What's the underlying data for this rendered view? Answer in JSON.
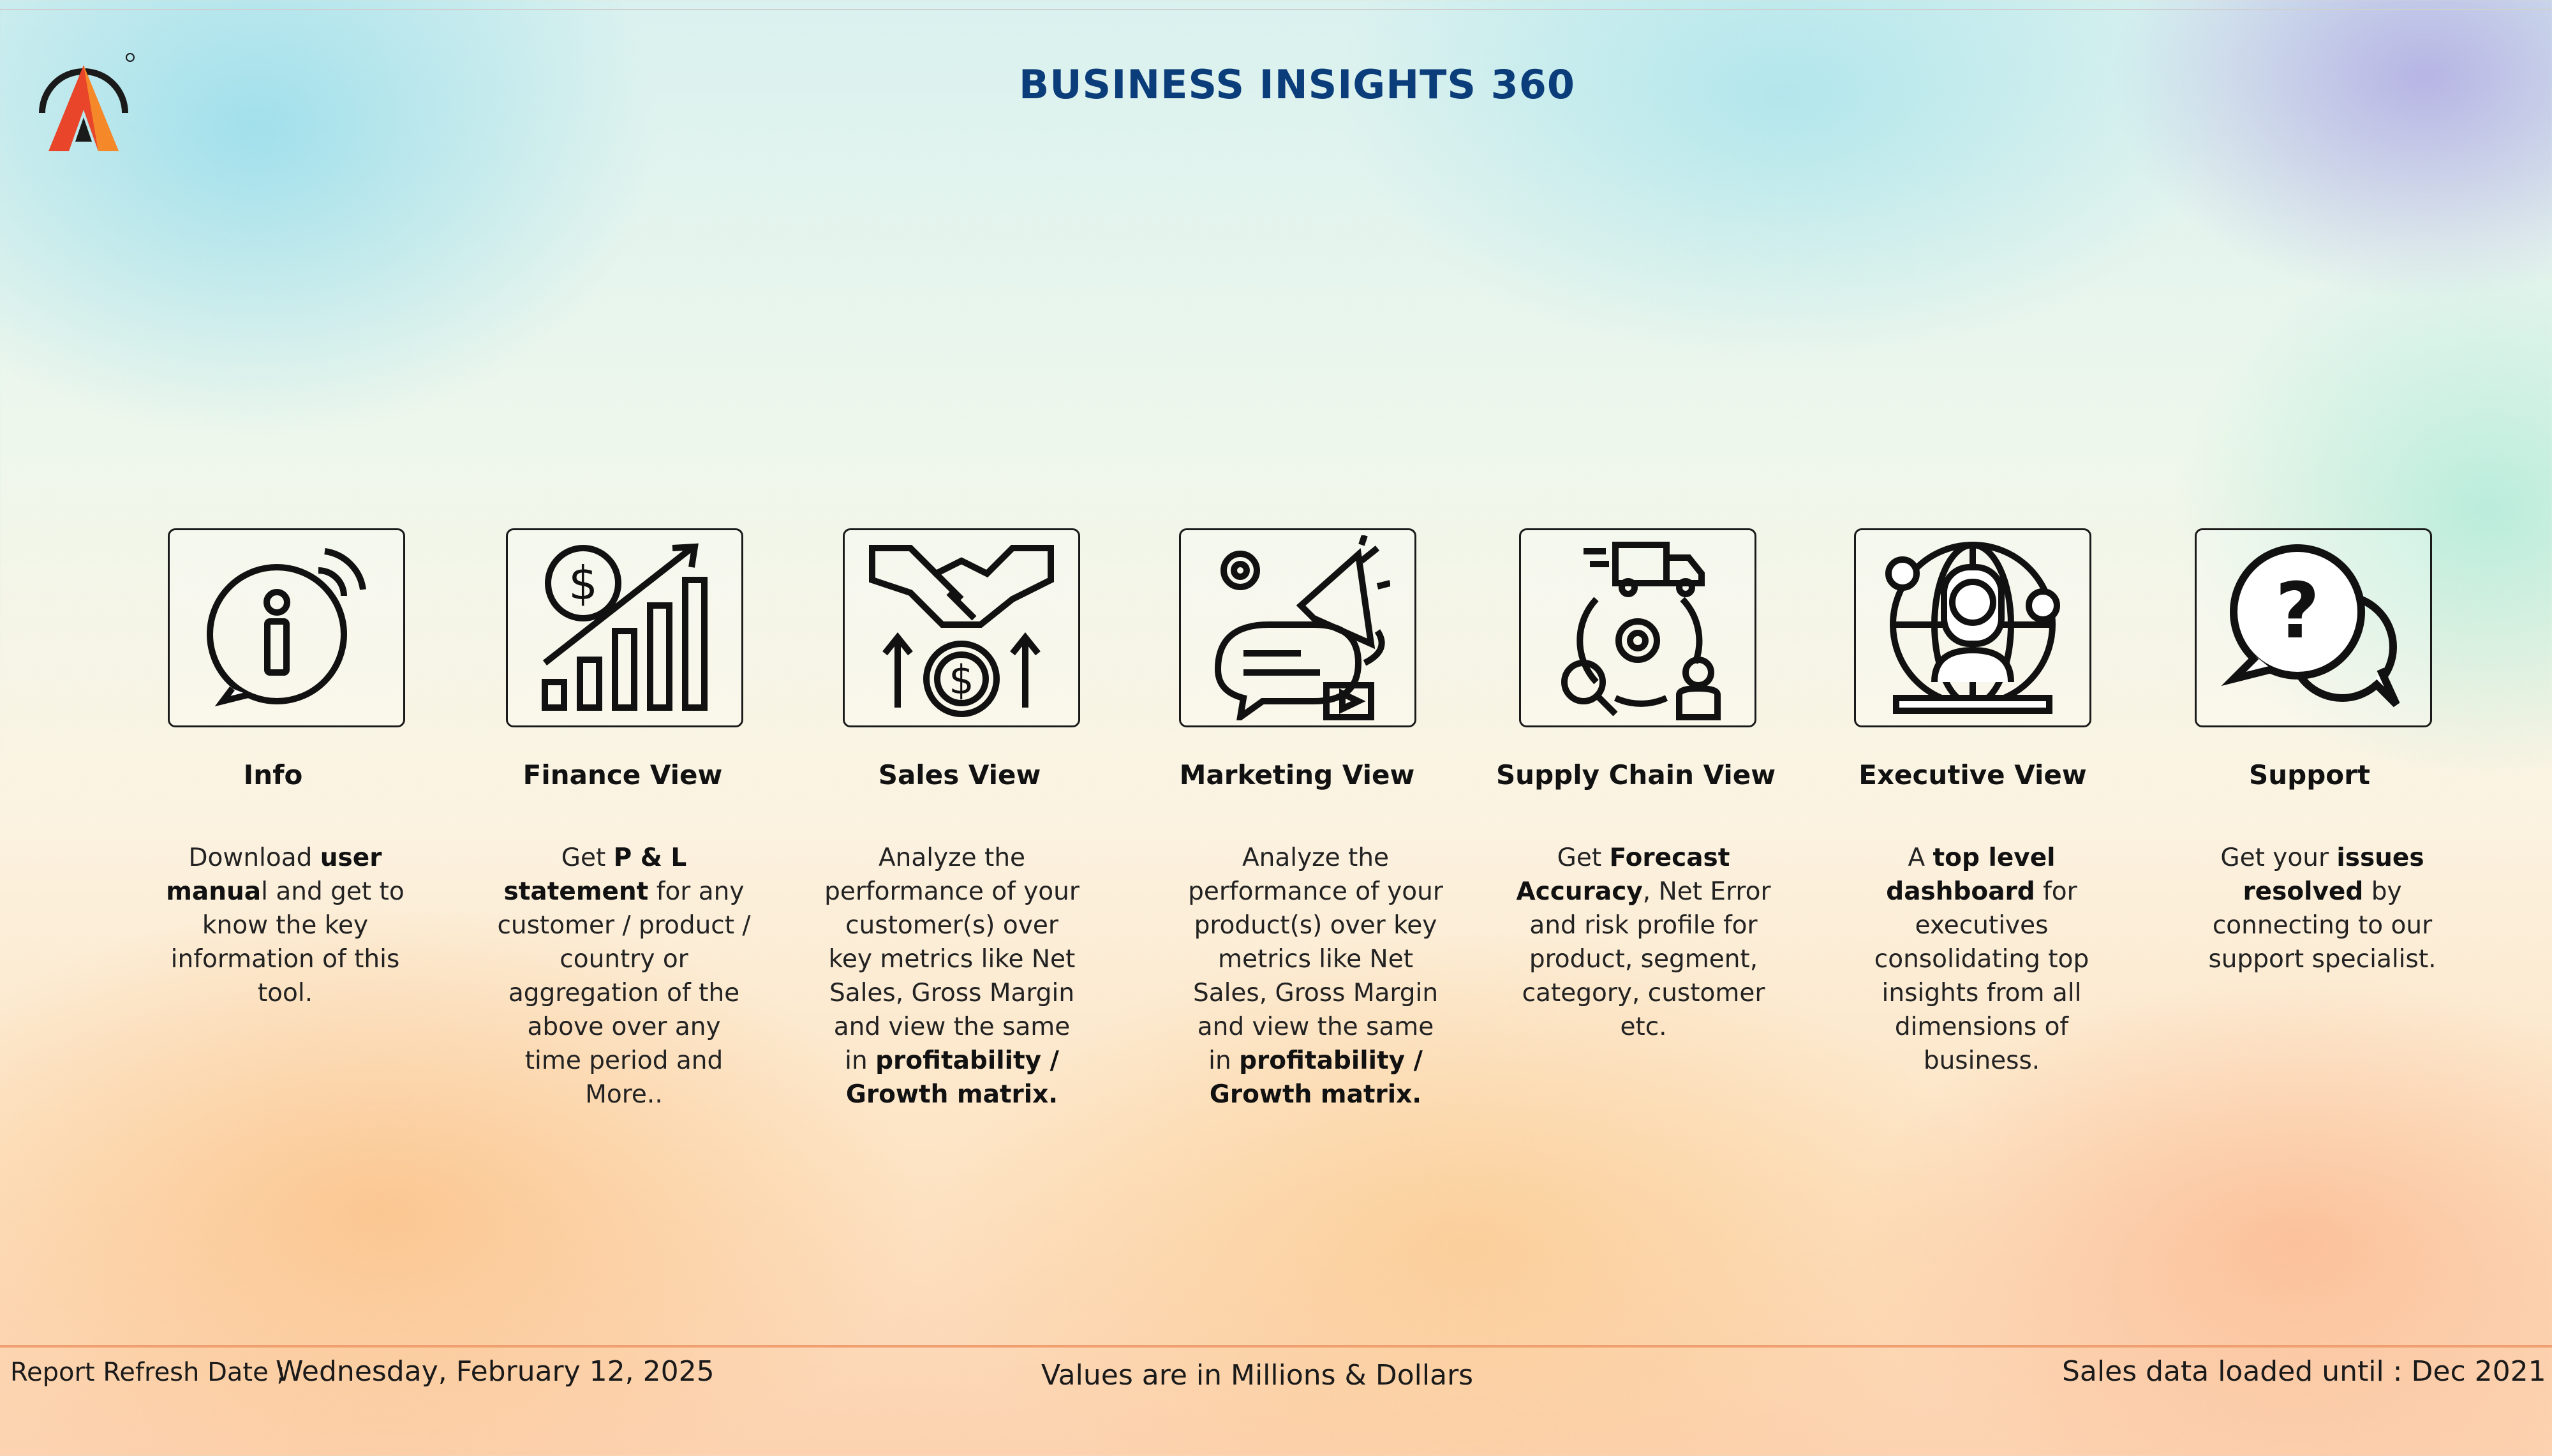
{
  "header": {
    "title": "BUSINESS INSIGHTS 360"
  },
  "colors": {
    "title": "#0b3d7a",
    "accent_orange": "#f0a070",
    "logo_red": "#e8452a",
    "logo_orange": "#f5892a"
  },
  "views": [
    {
      "name": "Info",
      "icon": "info-icon",
      "desc": [
        [
          "Download ",
          false
        ],
        [
          "user manua",
          true
        ],
        [
          "l and get to know the key information of this tool.",
          false
        ]
      ]
    },
    {
      "name": "Finance View",
      "icon": "finance-growth-icon",
      "desc": [
        [
          "Get  ",
          false
        ],
        [
          "P & L statement",
          true
        ],
        [
          " for any customer / product / country or aggregation of the above over any time period and More..",
          false
        ]
      ]
    },
    {
      "name": "Sales View",
      "icon": "handshake-dollar-icon",
      "desc": [
        [
          "Analyze the performance of your customer(s) over key metrics like Net Sales, Gross Margin and view the same in ",
          false
        ],
        [
          "profitability / Growth matrix.",
          true
        ]
      ]
    },
    {
      "name": "Marketing View",
      "icon": "megaphone-icon",
      "desc": [
        [
          "Analyze the performance of your product(s) over key metrics like Net Sales, Gross Margin and view the same in ",
          false
        ],
        [
          "profitability / Growth matrix.",
          true
        ]
      ]
    },
    {
      "name": "Supply Chain View",
      "icon": "supply-chain-icon",
      "desc": [
        [
          "Get ",
          false
        ],
        [
          "Forecast Accuracy",
          true
        ],
        [
          ", Net Error and risk profile for product, segment, category, customer etc.",
          false
        ]
      ]
    },
    {
      "name": "Executive View",
      "icon": "executive-icon",
      "desc": [
        [
          "A ",
          false
        ],
        [
          "top level dashboard",
          true
        ],
        [
          " for executives consolidating top insights from all dimensions of business.",
          false
        ]
      ]
    },
    {
      "name": "Support",
      "icon": "support-chat-icon",
      "desc": [
        [
          "Get your ",
          false
        ],
        [
          "issues resolved",
          true
        ],
        [
          " by connecting to our support specialist.",
          false
        ]
      ]
    }
  ],
  "footer": {
    "refresh_label": "Report Refresh Date ;",
    "refresh_date": "Wednesday, February 12, 2025",
    "units": "Values are in Millions & Dollars",
    "loaded": "Sales data loaded until : Dec 2021"
  }
}
